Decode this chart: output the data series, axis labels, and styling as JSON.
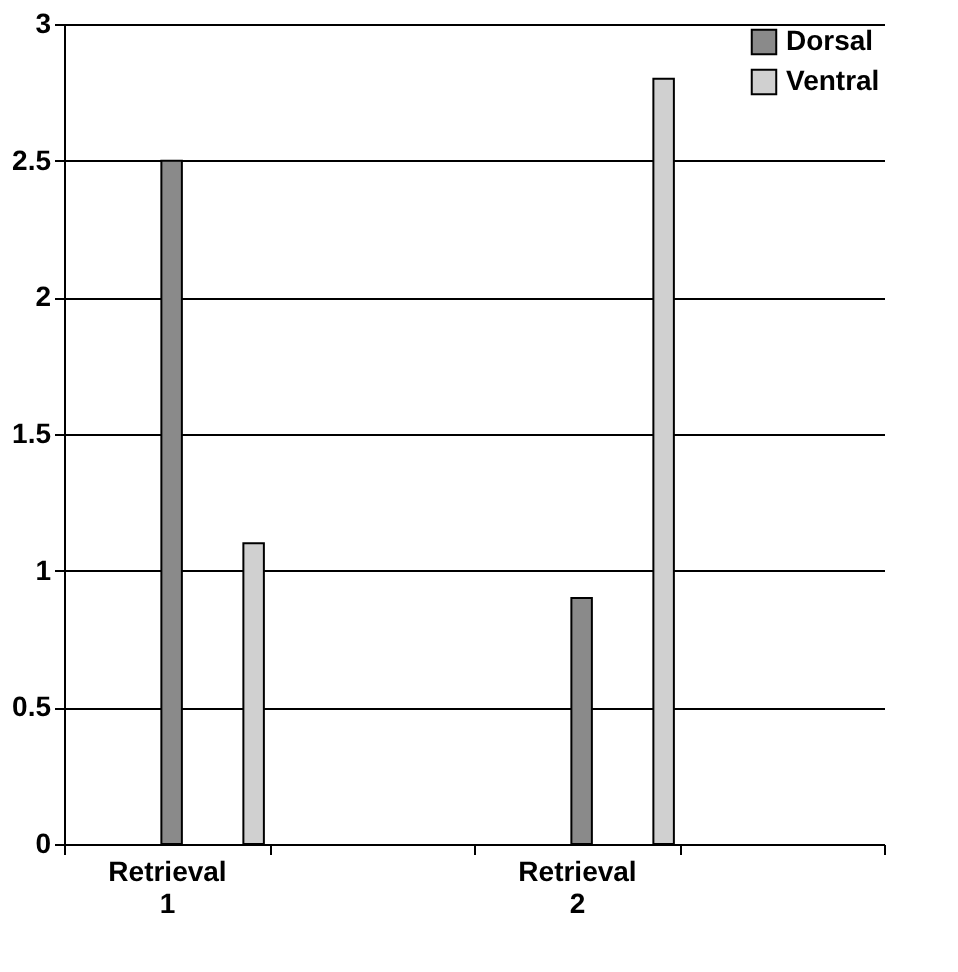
{
  "chart_data": {
    "type": "bar",
    "categories": [
      "Retrieval\n1",
      null,
      "Retrieval\n2",
      null
    ],
    "series": [
      {
        "name": "Dorsal",
        "color": "#8a8a8a",
        "values": [
          2.5,
          null,
          0.9,
          null
        ]
      },
      {
        "name": "Ventral",
        "color": "#d0d0d0",
        "values": [
          1.1,
          null,
          2.8,
          null
        ]
      }
    ],
    "ylim": [
      0,
      3
    ],
    "yticks": [
      0,
      0.5,
      1,
      1.5,
      2,
      2.5,
      3
    ],
    "grid": "y",
    "legend": "top right"
  }
}
